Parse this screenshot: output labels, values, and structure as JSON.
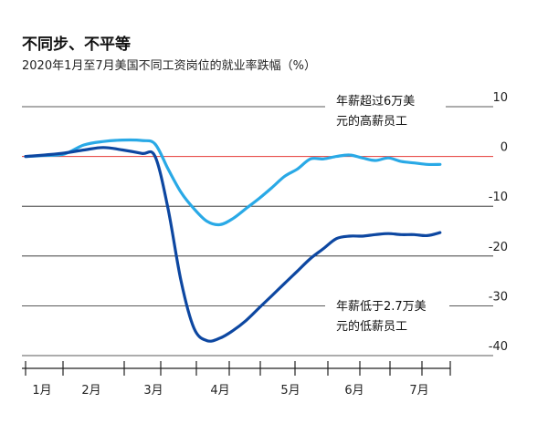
{
  "chart_data": {
    "type": "line",
    "title": "不同步、不平等",
    "subtitle": "2020年1月至7月美国不同工资岗位的就业率跌幅（%）",
    "xlabel": "",
    "ylabel": "",
    "ylim": [
      -40,
      10
    ],
    "y_ticks": [
      10,
      0,
      -10,
      -20,
      -30,
      -40
    ],
    "x_ticks": [
      "1月",
      "2月",
      "3月",
      "4月",
      "5月",
      "6月",
      "7月"
    ],
    "x_domain": [
      1,
      7.6
    ],
    "grid": true,
    "series": [
      {
        "name": "年薪超过6万美元的高薪员工",
        "color": "#29a9e6",
        "x": [
          1.0,
          1.3,
          1.6,
          1.9,
          2.2,
          2.5,
          2.8,
          3.0,
          3.2,
          3.4,
          3.6,
          3.8,
          4.0,
          4.2,
          4.4,
          4.6,
          4.8,
          5.0,
          5.2,
          5.4,
          5.6,
          5.8,
          6.0,
          6.2,
          6.4,
          6.6,
          6.8,
          7.0,
          7.2,
          7.4
        ],
        "values": [
          0,
          0.2,
          0.5,
          2.3,
          3.0,
          3.3,
          3.2,
          2.5,
          -2.5,
          -7.2,
          -10.5,
          -13.0,
          -13.7,
          -12.5,
          -10.5,
          -8.5,
          -6.3,
          -4.0,
          -2.5,
          -0.5,
          -0.5,
          0,
          0.3,
          -0.3,
          -0.8,
          -0.3,
          -1.0,
          -1.3,
          -1.6,
          -1.6
        ]
      },
      {
        "name": "年薪低于2.7万美元的低薪员工",
        "color": "#0d47a1",
        "x": [
          1.0,
          1.3,
          1.6,
          1.9,
          2.2,
          2.5,
          2.8,
          3.0,
          3.2,
          3.4,
          3.6,
          3.8,
          4.0,
          4.2,
          4.4,
          4.6,
          4.8,
          5.0,
          5.2,
          5.4,
          5.6,
          5.8,
          6.0,
          6.2,
          6.4,
          6.6,
          6.8,
          7.0,
          7.2,
          7.4
        ],
        "values": [
          0,
          0.3,
          0.7,
          1.3,
          1.8,
          1.3,
          0.6,
          0,
          -10.5,
          -25.0,
          -34.5,
          -37.0,
          -36.5,
          -35.0,
          -33.0,
          -30.5,
          -28.0,
          -25.5,
          -23.0,
          -20.5,
          -18.5,
          -16.5,
          -16.0,
          -16.0,
          -15.7,
          -15.5,
          -15.7,
          -15.7,
          -15.9,
          -15.3
        ]
      }
    ],
    "annotations": [
      "年薪超过6万美元的高薪员工",
      "年薪低于2.7万美元的低薪员工"
    ],
    "reference_line": {
      "value": 0,
      "color": "#e53935"
    }
  },
  "colors": {
    "grid": "#222222",
    "zero_line": "#e53935"
  }
}
